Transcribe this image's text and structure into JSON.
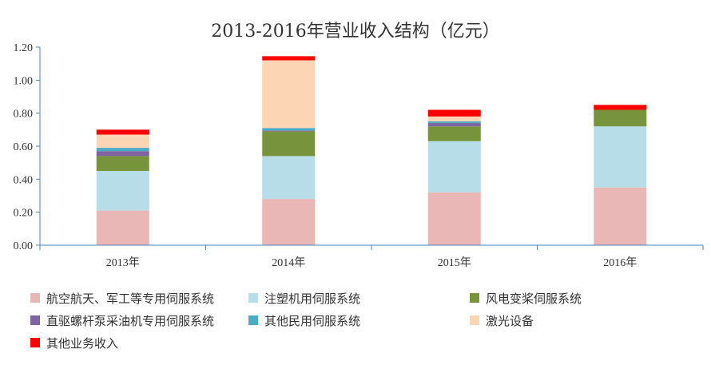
{
  "chart_data": {
    "type": "bar",
    "stacked": true,
    "title": "2013-2016年营业收入结构（亿元）",
    "xlabel": "",
    "ylabel": "",
    "categories": [
      "2013年",
      "2014年",
      "2015年",
      "2016年"
    ],
    "yticks": [
      "0.00",
      "0.20",
      "0.40",
      "0.60",
      "0.80",
      "1.00",
      "1.20"
    ],
    "ylim": [
      0,
      1.2
    ],
    "grid": false,
    "legend_position": "bottom",
    "series": [
      {
        "name": "航空航天、军工等专用伺服系统",
        "color": "#e8b7b6",
        "values": [
          0.21,
          0.28,
          0.32,
          0.35
        ]
      },
      {
        "name": "注塑机用伺服系统",
        "color": "#b7dde8",
        "values": [
          0.24,
          0.26,
          0.31,
          0.37
        ]
      },
      {
        "name": "风电变桨伺服系统",
        "color": "#77933c",
        "values": [
          0.09,
          0.15,
          0.09,
          0.1
        ]
      },
      {
        "name": "直驱螺杆泵采油机专用伺服系统",
        "color": "#8064a2",
        "values": [
          0.03,
          0.005,
          0.02,
          0.0
        ]
      },
      {
        "name": "其他民用伺服系统",
        "color": "#4bacc6",
        "values": [
          0.02,
          0.015,
          0.01,
          0.0
        ]
      },
      {
        "name": "激光设备",
        "color": "#fcd5b5",
        "values": [
          0.08,
          0.41,
          0.03,
          0.0
        ]
      },
      {
        "name": "其他业务收入",
        "color": "#ff0000",
        "values": [
          0.03,
          0.025,
          0.04,
          0.03
        ]
      }
    ]
  }
}
